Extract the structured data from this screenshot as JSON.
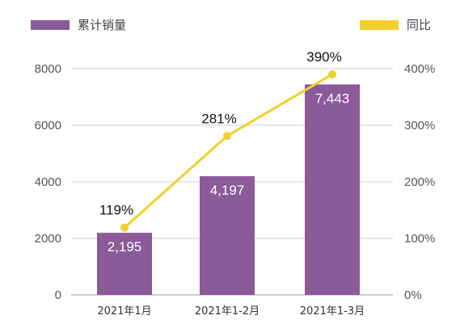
{
  "chart_data": {
    "type": "bar",
    "categories": [
      "2021年1月",
      "2021年1-2月",
      "2021年1-3月"
    ],
    "series": [
      {
        "name": "累计销量",
        "type": "bar",
        "axis": "left",
        "color": "#8b5a99",
        "values": [
          2195,
          4197,
          7443
        ],
        "labels": [
          "2,195",
          "4,197",
          "7,443"
        ]
      },
      {
        "name": "同比",
        "type": "line",
        "axis": "right",
        "color": "#f2cf2b",
        "values": [
          119,
          281,
          390
        ],
        "labels": [
          "119%",
          "281%",
          "390%"
        ]
      }
    ],
    "ylim": [
      0,
      8000
    ],
    "y_ticks": [
      "0",
      "2000",
      "4000",
      "6000",
      "8000"
    ],
    "y2lim": [
      0,
      400
    ],
    "y2_ticks": [
      "0%",
      "100%",
      "200%",
      "300%",
      "400%"
    ],
    "grid": true,
    "legend_position": "top"
  }
}
